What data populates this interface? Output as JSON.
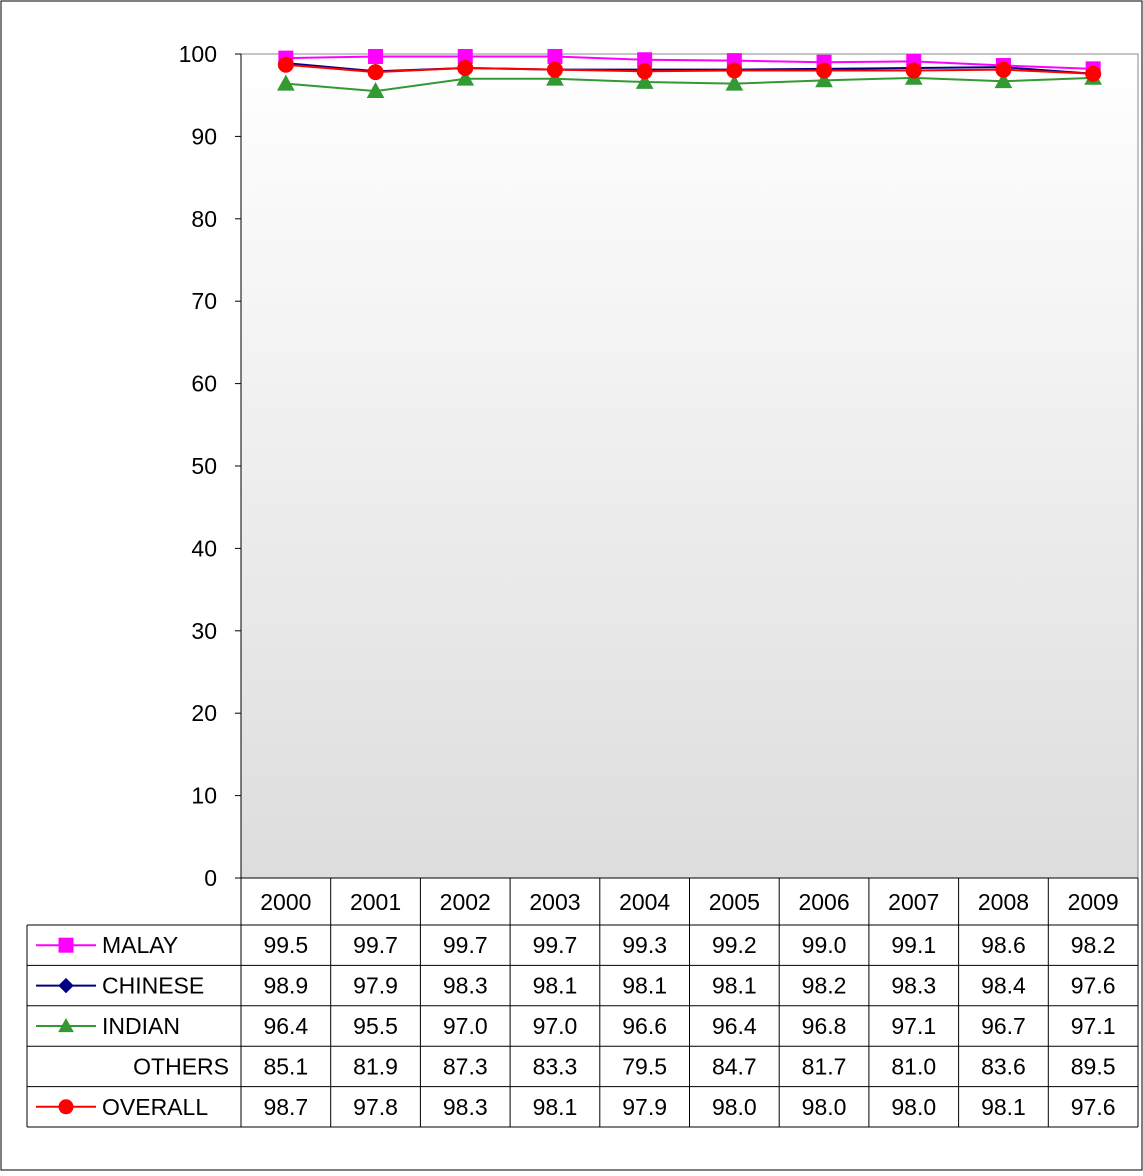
{
  "chart_data": {
    "type": "line",
    "title": "",
    "xlabel": "",
    "ylabel": "",
    "ylim": [
      0,
      100
    ],
    "yticks": [
      0,
      10,
      20,
      30,
      40,
      50,
      60,
      70,
      80,
      90,
      100
    ],
    "categories": [
      "2000",
      "2001",
      "2002",
      "2003",
      "2004",
      "2005",
      "2006",
      "2007",
      "2008",
      "2009"
    ],
    "grid": false,
    "legend": "data-table-below",
    "series": [
      {
        "name": "MALAY",
        "color": "#ff00ff",
        "marker": "square",
        "plotted": true,
        "values": [
          99.5,
          99.7,
          99.7,
          99.7,
          99.3,
          99.2,
          99.0,
          99.1,
          98.6,
          98.2
        ],
        "labels": [
          "99.5",
          "99.7",
          "99.7",
          "99.7",
          "99.3",
          "99.2",
          "99.0",
          "99.1",
          "98.6",
          "98.2"
        ]
      },
      {
        "name": "CHINESE",
        "color": "#000080",
        "marker": "diamond",
        "plotted": true,
        "values": [
          98.9,
          97.9,
          98.3,
          98.1,
          98.1,
          98.1,
          98.2,
          98.3,
          98.4,
          97.6
        ],
        "labels": [
          "98.9",
          "97.9",
          "98.3",
          "98.1",
          "98.1",
          "98.1",
          "98.2",
          "98.3",
          "98.4",
          "97.6"
        ]
      },
      {
        "name": "INDIAN",
        "color": "#339933",
        "marker": "triangle",
        "plotted": true,
        "values": [
          96.4,
          95.5,
          97.0,
          97.0,
          96.6,
          96.4,
          96.8,
          97.1,
          96.7,
          97.1
        ],
        "labels": [
          "96.4",
          "95.5",
          "97.0",
          "97.0",
          "96.6",
          "96.4",
          "96.8",
          "97.1",
          "96.7",
          "97.1"
        ]
      },
      {
        "name": "OTHERS",
        "color": "",
        "marker": "none",
        "plotted": false,
        "values": [
          85.1,
          81.9,
          87.3,
          83.3,
          79.5,
          84.7,
          81.7,
          81.0,
          83.6,
          89.5
        ],
        "labels": [
          "85.1",
          "81.9",
          "87.3",
          "83.3",
          "79.5",
          "84.7",
          "81.7",
          "81.0",
          "83.6",
          "89.5"
        ]
      },
      {
        "name": "OVERALL",
        "color": "#ff0000",
        "marker": "circle",
        "plotted": true,
        "values": [
          98.7,
          97.8,
          98.3,
          98.1,
          97.9,
          98.0,
          98.0,
          98.0,
          98.1,
          97.6
        ],
        "labels": [
          "98.7",
          "97.8",
          "98.3",
          "98.1",
          "97.9",
          "98.0",
          "98.0",
          "98.0",
          "98.1",
          "97.6"
        ]
      }
    ]
  }
}
